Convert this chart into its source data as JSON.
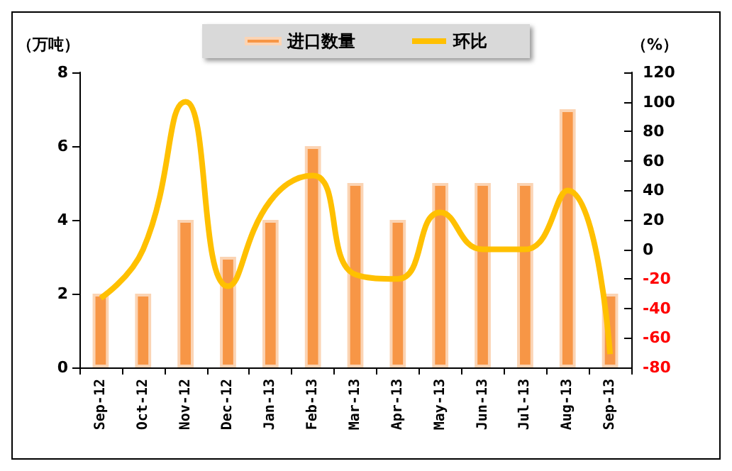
{
  "chart_data": {
    "type": "bar",
    "ylabel": "（万吨）",
    "y2label": "（%）",
    "categories": [
      "Sep-12",
      "Oct-12",
      "Nov-12",
      "Dec-12",
      "Jan-13",
      "Feb-13",
      "Mar-13",
      "Apr-13",
      "May-13",
      "Jun-13",
      "Jul-13",
      "Aug-13",
      "Sep-13"
    ],
    "series": [
      {
        "name": "进口数量",
        "color": "#f79646",
        "values": [
          2,
          2,
          4,
          3,
          4,
          6,
          5,
          4,
          5,
          5,
          5,
          7,
          2
        ]
      },
      {
        "name": "环比",
        "type": "line",
        "axis": "y2",
        "color": "#ffc000",
        "values": [
          -33,
          0,
          100,
          -25,
          33,
          50,
          -17,
          -20,
          25,
          0,
          0,
          40,
          -71
        ]
      }
    ],
    "ylim": [
      0,
      8
    ],
    "yticks": [
      0,
      2,
      4,
      6,
      8
    ],
    "y2lim": [
      -80,
      120
    ],
    "y2ticks": [
      -80,
      -60,
      -40,
      -20,
      0,
      20,
      40,
      60,
      80,
      100,
      120
    ],
    "grid": false,
    "legend": "top",
    "marker": "none",
    "line_style": "solid"
  }
}
